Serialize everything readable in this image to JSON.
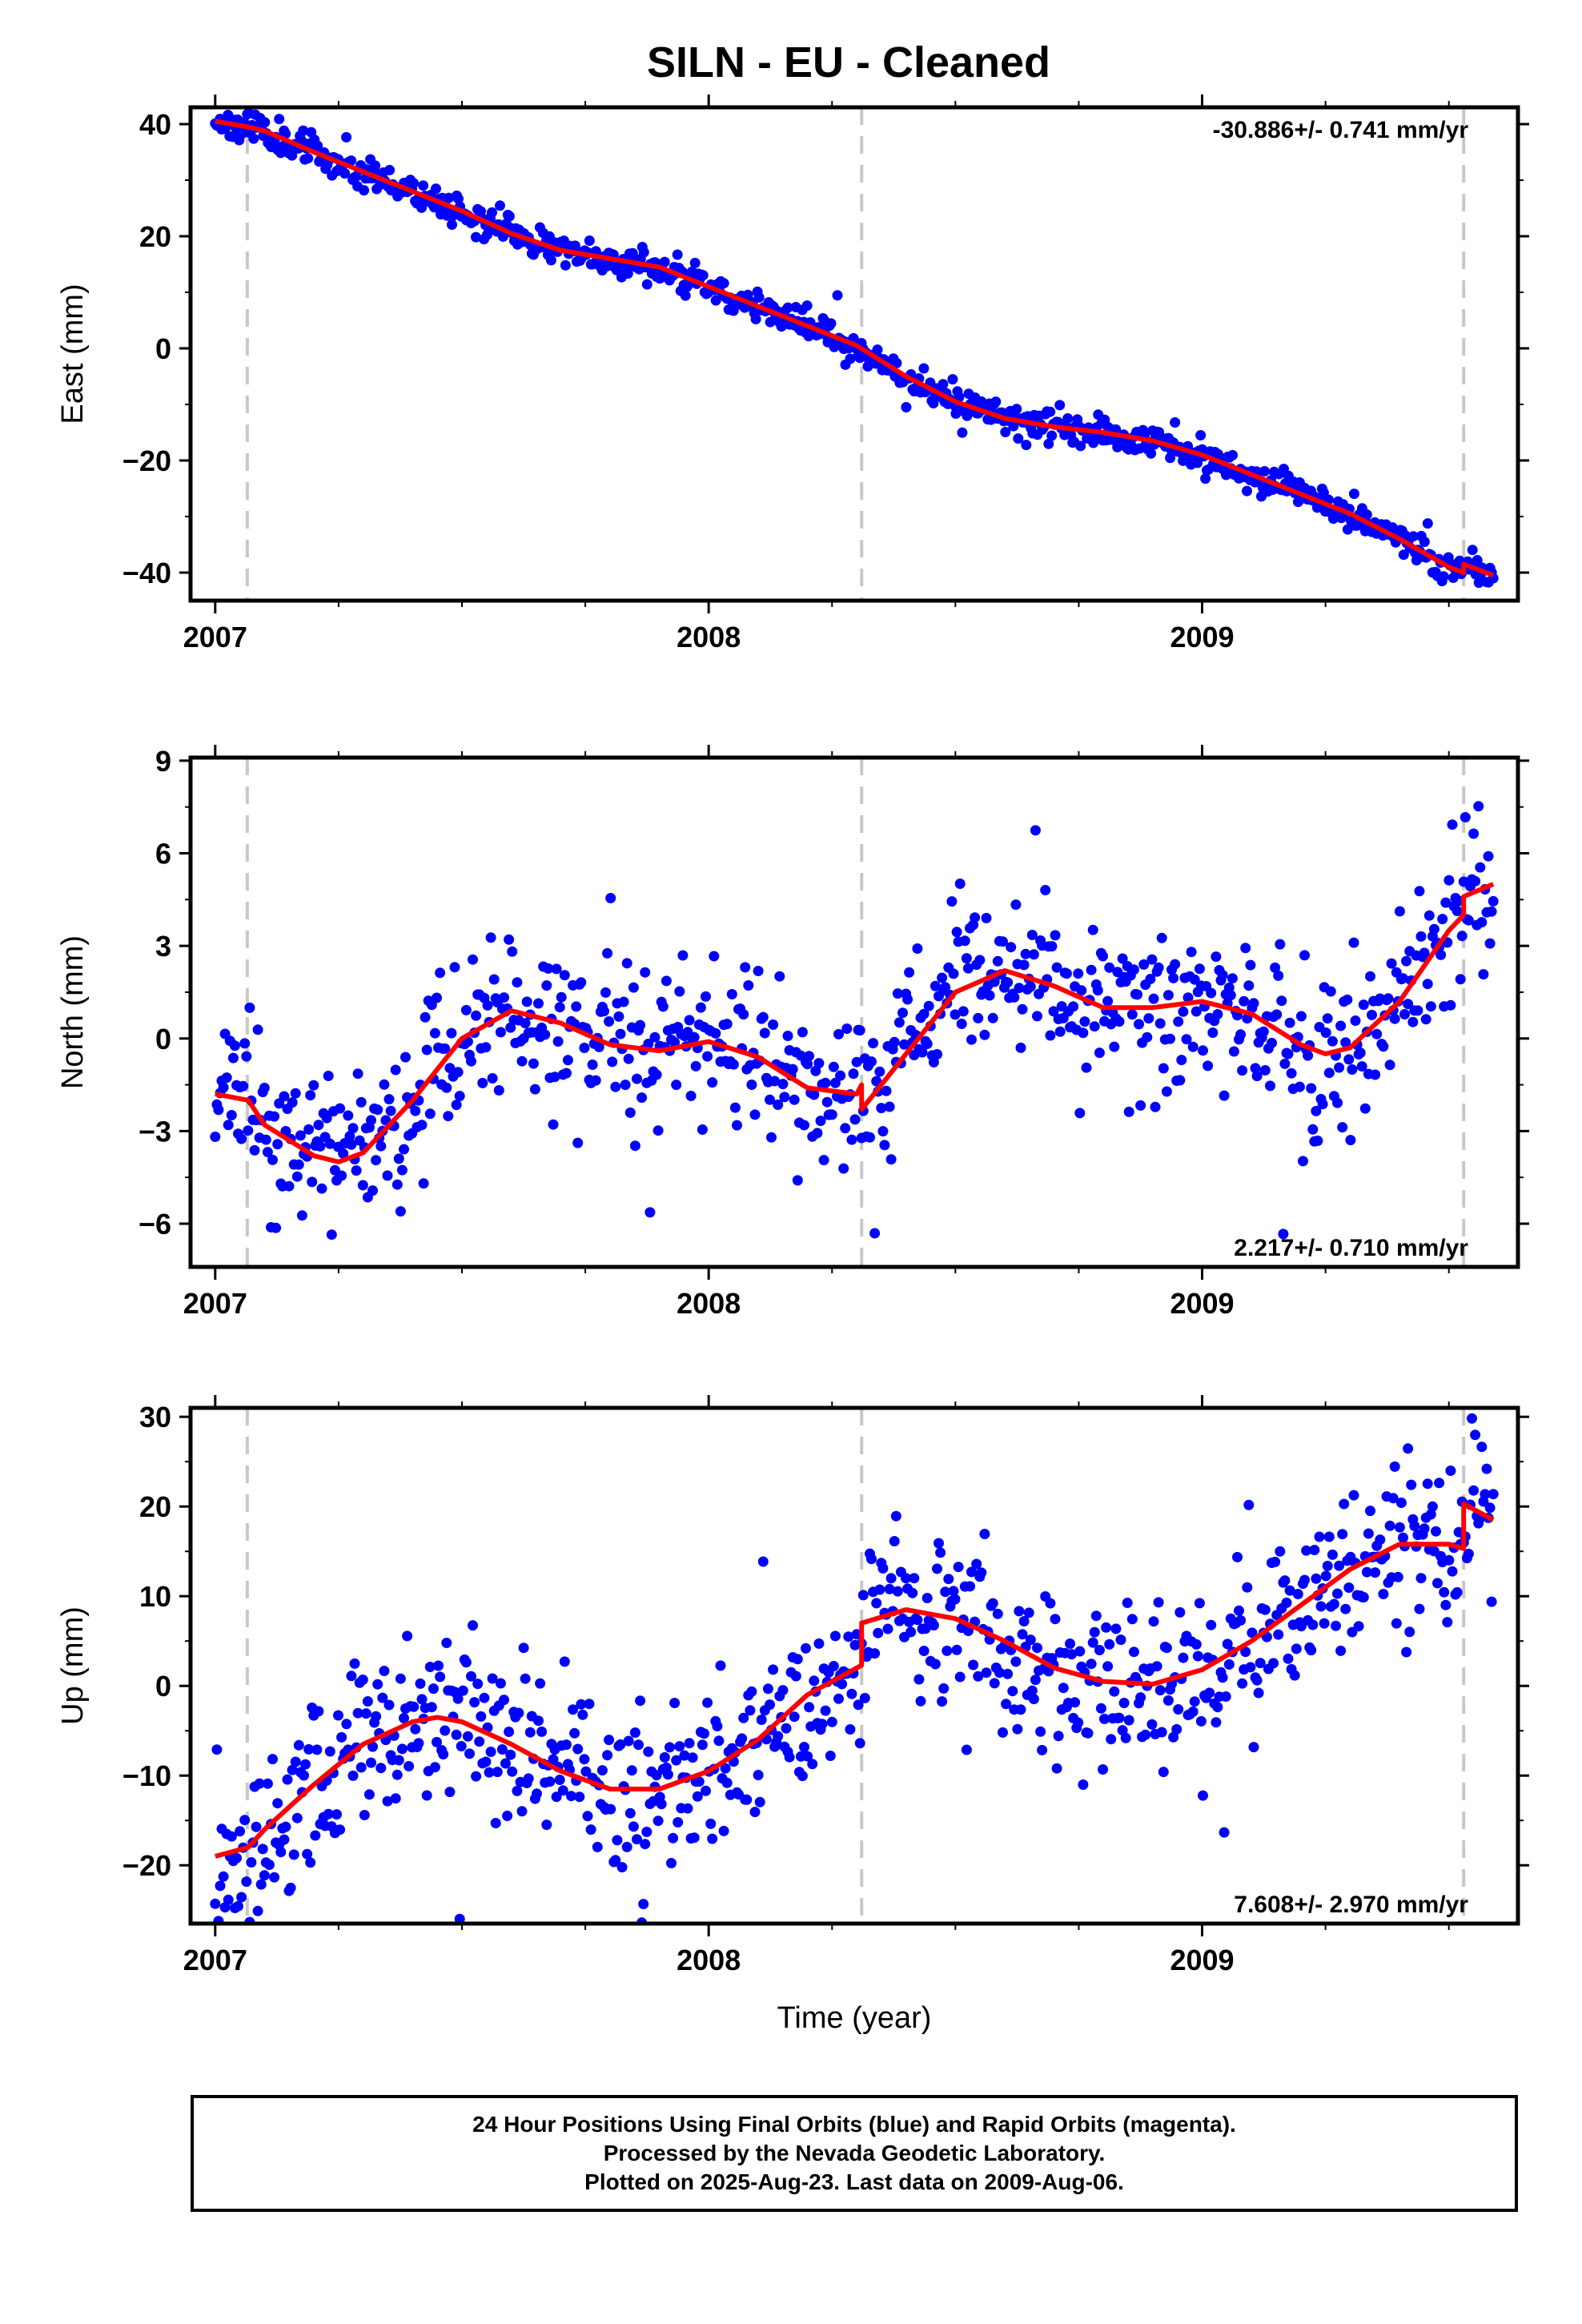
{
  "title": "SILN  - EU - Cleaned",
  "colors": {
    "data": "#0000ff",
    "model": "#ff0000",
    "offset_line": "#c8c8c8",
    "frame": "#000000"
  },
  "chart_data": [
    {
      "type": "scatter",
      "component": "East",
      "ylabel": "East (mm)",
      "xlabel": "",
      "xlim": [
        2006.95,
        2009.64
      ],
      "ylim": [
        -45,
        43
      ],
      "yticks": [
        -40,
        -20,
        0,
        20,
        40
      ],
      "ytick_labels": [
        "−40",
        "−20",
        "0",
        "20",
        "40"
      ],
      "xticks": [
        2007,
        2008,
        2009
      ],
      "xtick_labels": [
        "2007",
        "2008",
        "2009"
      ],
      "rate": "-30.886+/- 0.741 mm/yr",
      "rate_position": "top-right",
      "offsets_x": [
        2007.065,
        2008.31,
        2009.53
      ],
      "model_x": [
        2007.0,
        2007.067,
        2007.1,
        2007.2,
        2007.3,
        2007.4,
        2007.5,
        2007.6,
        2007.7,
        2007.8,
        2007.9,
        2008.0,
        2008.1,
        2008.2,
        2008.3,
        2008.4,
        2008.5,
        2008.6,
        2008.7,
        2008.8,
        2008.9,
        2009.0,
        2009.1,
        2009.2,
        2009.3,
        2009.4,
        2009.5,
        2009.53,
        2009.53,
        2009.59
      ],
      "model_y": [
        40.5,
        39.5,
        38.8,
        35.0,
        31.5,
        28.0,
        24.5,
        20.5,
        17.5,
        16.0,
        14.5,
        11.0,
        7.5,
        4.0,
        0.5,
        -5.0,
        -9.5,
        -12.5,
        -14.0,
        -15.0,
        -16.5,
        -19.0,
        -22.5,
        -26.0,
        -29.5,
        -34.0,
        -39.0,
        -40.0,
        -38.5,
        -40.5
      ],
      "scatter_seed": 11,
      "scatter_noise": 1.4,
      "scatter_count": 800
    },
    {
      "type": "scatter",
      "component": "North",
      "ylabel": "North (mm)",
      "xlabel": "",
      "xlim": [
        2006.95,
        2009.64
      ],
      "ylim": [
        -7.4,
        9.1
      ],
      "yticks": [
        -6,
        -3,
        0,
        3,
        6,
        9
      ],
      "ytick_labels": [
        "−6",
        "−3",
        "0",
        "3",
        "6",
        "9"
      ],
      "xticks": [
        2007,
        2008,
        2009
      ],
      "xtick_labels": [
        "2007",
        "2008",
        "2009"
      ],
      "rate": "2.217+/- 0.710 mm/yr",
      "rate_position": "bottom-right",
      "offsets_x": [
        2007.065,
        2008.31,
        2009.53
      ],
      "model_x": [
        2007.0,
        2007.067,
        2007.1,
        2007.2,
        2007.25,
        2007.3,
        2007.4,
        2007.5,
        2007.6,
        2007.7,
        2007.8,
        2007.9,
        2008.0,
        2008.1,
        2008.2,
        2008.3,
        2008.31,
        2008.31,
        2008.4,
        2008.5,
        2008.6,
        2008.7,
        2008.8,
        2008.9,
        2009.0,
        2009.1,
        2009.2,
        2009.25,
        2009.3,
        2009.4,
        2009.5,
        2009.53,
        2009.53,
        2009.59
      ],
      "model_y": [
        -1.8,
        -2.0,
        -2.8,
        -3.8,
        -4.0,
        -3.7,
        -2.0,
        0.0,
        0.9,
        0.5,
        -0.2,
        -0.4,
        -0.1,
        -0.6,
        -1.6,
        -1.8,
        -1.5,
        -2.3,
        -0.5,
        1.5,
        2.2,
        1.7,
        1.0,
        1.0,
        1.2,
        0.8,
        -0.2,
        -0.5,
        -0.3,
        1.2,
        3.5,
        4.0,
        4.6,
        5.0
      ],
      "scatter_seed": 23,
      "scatter_noise": 1.25,
      "scatter_count": 780
    },
    {
      "type": "scatter",
      "component": "Up",
      "ylabel": "Up (mm)",
      "xlabel": "Time (year)",
      "xlim": [
        2006.95,
        2009.64
      ],
      "ylim": [
        -26.5,
        31
      ],
      "yticks": [
        -20,
        -10,
        0,
        10,
        20,
        30
      ],
      "ytick_labels": [
        "−20",
        "−10",
        "0",
        "10",
        "20",
        "30"
      ],
      "xticks": [
        2007,
        2008,
        2009
      ],
      "xtick_labels": [
        "2007",
        "2008",
        "2009"
      ],
      "rate": "7.608+/- 2.970 mm/yr",
      "rate_position": "bottom-right",
      "offsets_x": [
        2007.065,
        2008.31,
        2009.53
      ],
      "model_x": [
        2007.0,
        2007.067,
        2007.1,
        2007.2,
        2007.3,
        2007.4,
        2007.45,
        2007.5,
        2007.6,
        2007.7,
        2007.8,
        2007.9,
        2008.0,
        2008.1,
        2008.2,
        2008.3,
        2008.31,
        2008.31,
        2008.4,
        2008.5,
        2008.6,
        2008.7,
        2008.8,
        2008.9,
        2009.0,
        2009.1,
        2009.2,
        2009.3,
        2009.4,
        2009.5,
        2009.53,
        2009.53,
        2009.59
      ],
      "model_y": [
        -19.0,
        -18.0,
        -16.0,
        -11.0,
        -6.5,
        -4.0,
        -3.5,
        -4.0,
        -6.5,
        -9.5,
        -11.5,
        -11.5,
        -9.5,
        -6.0,
        -1.0,
        2.0,
        2.3,
        7.0,
        8.5,
        7.5,
        5.0,
        2.0,
        0.5,
        0.2,
        1.8,
        5.0,
        9.0,
        13.0,
        15.8,
        15.8,
        15.3,
        20.3,
        18.5
      ],
      "scatter_seed": 37,
      "scatter_noise": 4.8,
      "scatter_count": 780
    }
  ],
  "footer": {
    "line1": "24 Hour Positions Using Final Orbits (blue) and Rapid Orbits (magenta).",
    "line2": "Processed by the Nevada Geodetic Laboratory.",
    "line3": "Plotted on 2025-Aug-23. Last data on 2009-Aug-06."
  }
}
